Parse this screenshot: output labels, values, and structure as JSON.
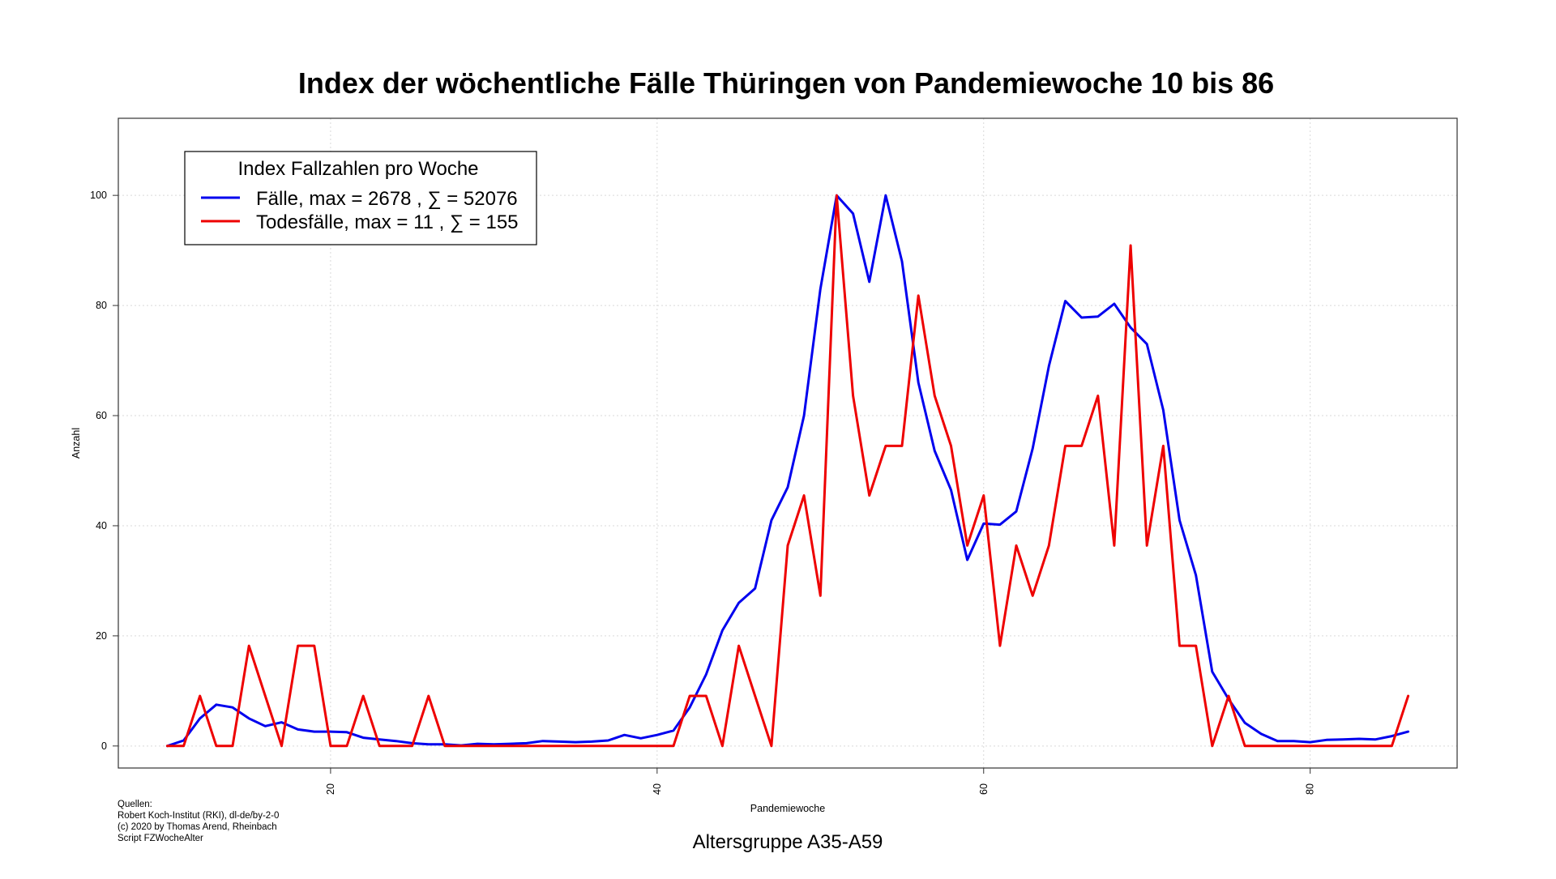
{
  "chart_data": {
    "type": "line",
    "title": "Index der wöchentliche Fälle Thüringen von Pandemiewoche 10 bis 86",
    "subtitle": "Altersgruppe A35-A59",
    "xlabel": "Pandemiewoche",
    "ylabel": "Anzahl",
    "xlim": [
      7,
      89
    ],
    "ylim": [
      -4,
      114
    ],
    "x_ticks": [
      20,
      40,
      60,
      80
    ],
    "y_ticks": [
      0,
      20,
      40,
      60,
      80,
      100
    ],
    "grid": true,
    "legend": {
      "title": "Index Fallzahlen pro Woche",
      "position": "top-left",
      "entries": [
        "Fälle, max = 2678 ,  ∑  = 52076",
        "Todesfälle, max = 11 ,  ∑  = 155"
      ]
    },
    "x": [
      10,
      11,
      12,
      13,
      14,
      15,
      16,
      17,
      18,
      19,
      20,
      21,
      22,
      23,
      24,
      25,
      26,
      27,
      28,
      29,
      30,
      31,
      32,
      33,
      34,
      35,
      36,
      37,
      38,
      39,
      40,
      41,
      42,
      43,
      44,
      45,
      46,
      47,
      48,
      49,
      50,
      51,
      52,
      53,
      54,
      55,
      56,
      57,
      58,
      59,
      60,
      61,
      62,
      63,
      64,
      65,
      66,
      67,
      68,
      69,
      70,
      71,
      72,
      73,
      74,
      75,
      76,
      77,
      78,
      79,
      80,
      81,
      82,
      83,
      84,
      85,
      86
    ],
    "series": [
      {
        "name": "Fälle",
        "color": "#0000ee",
        "values": [
          0,
          1,
          5,
          7.5,
          7,
          5,
          3.6,
          4.3,
          3,
          2.6,
          2.6,
          2.5,
          1.5,
          1.2,
          0.9,
          0.5,
          0.3,
          0.3,
          0.1,
          0.4,
          0.3,
          0.4,
          0.5,
          0.9,
          0.8,
          0.7,
          0.8,
          1,
          2,
          1.4,
          2,
          2.8,
          7,
          13,
          21,
          26,
          28.6,
          41,
          47,
          60,
          83,
          100,
          96.7,
          84.3,
          100,
          88,
          66,
          53.6,
          46.5,
          33.8,
          40.4,
          40.2,
          42.6,
          54,
          69,
          80.8,
          77.8,
          78,
          80.3,
          76,
          73,
          61,
          41,
          31,
          13.5,
          8.5,
          4.2,
          2.2,
          0.9,
          0.9,
          0.7,
          1.1,
          1.2,
          1.3,
          1.2,
          1.8,
          2.6
        ]
      },
      {
        "name": "Todesfälle",
        "color": "#ee0000",
        "values": [
          0,
          0,
          9.1,
          0,
          0,
          18.2,
          9.1,
          0,
          18.2,
          18.2,
          0,
          0,
          9.1,
          0,
          0,
          0,
          9.1,
          0,
          0,
          0,
          0,
          0,
          0,
          0,
          0,
          0,
          0,
          0,
          0,
          0,
          0,
          0,
          9.1,
          9.1,
          0,
          18.2,
          9.1,
          0,
          36.4,
          45.5,
          27.3,
          100,
          63.6,
          45.5,
          54.5,
          54.5,
          81.8,
          63.6,
          54.5,
          36.4,
          45.5,
          18.2,
          36.4,
          27.3,
          36.4,
          54.5,
          54.5,
          63.6,
          36.4,
          90.9,
          36.4,
          54.5,
          18.2,
          18.2,
          0,
          9.1,
          0,
          0,
          0,
          0,
          0,
          0,
          0,
          0,
          0,
          0,
          9.1
        ]
      }
    ],
    "sources": [
      "Quellen:",
      "Robert Koch-Institut (RKI), dl-de/by-2-0",
      "(c) 2020 by Thomas Arend, Rheinbach",
      "Script FZWocheAlter"
    ]
  }
}
